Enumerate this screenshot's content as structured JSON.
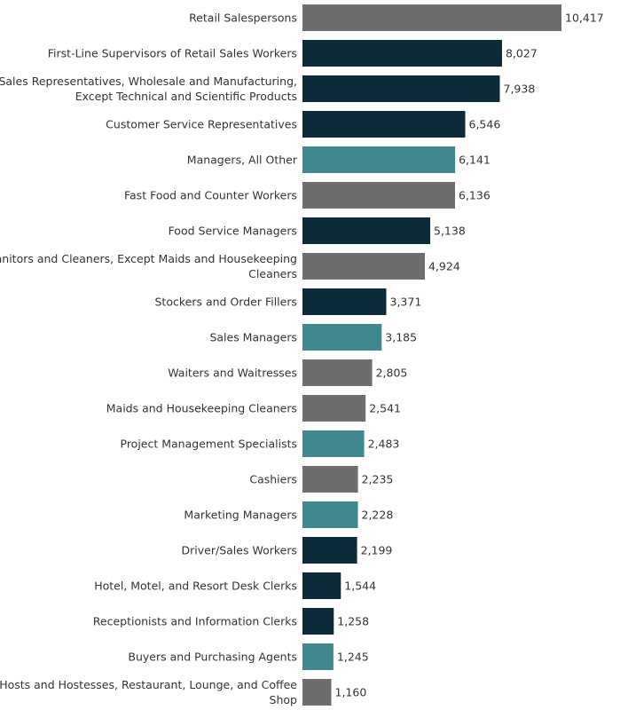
{
  "chart_data": {
    "type": "bar",
    "orientation": "horizontal",
    "grid": false,
    "legend": "none",
    "categories": [
      "Retail Salespersons",
      "First-Line Supervisors of Retail Sales Workers",
      "Sales Representatives, Wholesale and Manufacturing, Except Technical and Scientific Products",
      "Customer Service Representatives",
      "Managers, All Other",
      "Fast Food and Counter Workers",
      "Food Service Managers",
      "Janitors and Cleaners, Except Maids and Housekeeping Cleaners",
      "Stockers and Order Fillers",
      "Sales Managers",
      "Waiters and Waitresses",
      "Maids and Housekeeping Cleaners",
      "Project Management Specialists",
      "Cashiers",
      "Marketing Managers",
      "Driver/Sales Workers",
      "Hotel, Motel, and Resort Desk Clerks",
      "Receptionists and Information Clerks",
      "Buyers and Purchasing Agents",
      "Hosts and Hostesses, Restaurant, Lounge, and Coffee Shop"
    ],
    "label_lines": [
      [
        "Retail Salespersons"
      ],
      [
        "First-Line Supervisors of Retail Sales Workers"
      ],
      [
        "Sales Representatives, Wholesale and Manufacturing,",
        "Except Technical and Scientific Products"
      ],
      [
        "Customer Service Representatives"
      ],
      [
        "Managers, All Other"
      ],
      [
        "Fast Food and Counter Workers"
      ],
      [
        "Food Service Managers"
      ],
      [
        "Janitors and Cleaners, Except Maids and Housekeeping",
        "Cleaners"
      ],
      [
        "Stockers and Order Fillers"
      ],
      [
        "Sales Managers"
      ],
      [
        "Waiters and Waitresses"
      ],
      [
        "Maids and Housekeeping Cleaners"
      ],
      [
        "Project Management Specialists"
      ],
      [
        "Cashiers"
      ],
      [
        "Marketing Managers"
      ],
      [
        "Driver/Sales Workers"
      ],
      [
        "Hotel, Motel, and Resort Desk Clerks"
      ],
      [
        "Receptionists and Information Clerks"
      ],
      [
        "Buyers and Purchasing Agents"
      ],
      [
        "Hosts and Hostesses, Restaurant, Lounge, and Coffee",
        "Shop"
      ]
    ],
    "values": [
      10417,
      8027,
      7938,
      6546,
      6141,
      6136,
      5138,
      4924,
      3371,
      3185,
      2805,
      2541,
      2483,
      2235,
      2228,
      2199,
      1544,
      1258,
      1245,
      1160
    ],
    "value_labels": [
      "10,417",
      "8,027",
      "7,938",
      "6,546",
      "6,141",
      "6,136",
      "5,138",
      "4,924",
      "3,371",
      "3,185",
      "2,805",
      "2,541",
      "2,483",
      "2,235",
      "2,228",
      "2,199",
      "1,544",
      "1,258",
      "1,245",
      "1,160"
    ],
    "bar_colors": [
      "gray",
      "navy",
      "navy",
      "navy",
      "teal",
      "gray",
      "navy",
      "gray",
      "navy",
      "teal",
      "gray",
      "gray",
      "teal",
      "gray",
      "teal",
      "navy",
      "navy",
      "navy",
      "teal",
      "gray"
    ],
    "colors": {
      "navy": "#0c2b3a",
      "teal": "#3f8890",
      "gray": "#6d6d6d"
    },
    "xlim": [
      0,
      10417
    ],
    "title": "",
    "xlabel": "",
    "ylabel": ""
  }
}
